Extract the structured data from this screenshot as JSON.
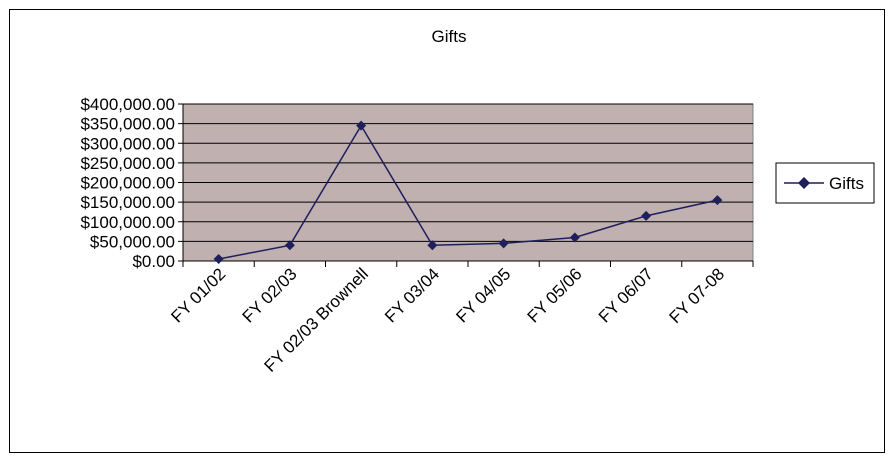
{
  "chart_data": {
    "type": "line",
    "title": "Gifts",
    "xlabel": "",
    "ylabel": "",
    "categories": [
      "FY 01/02",
      "FY 02/03",
      "FY 02/03 Brownell",
      "FY 03/04",
      "FY 04/05",
      "FY 05/06",
      "FY 06/07",
      "FY 07-08"
    ],
    "series": [
      {
        "name": "Gifts",
        "values": [
          5000,
          40000,
          345000,
          40000,
          45000,
          60000,
          115000,
          155000
        ],
        "color": "#1f1f5c"
      }
    ],
    "ylim": [
      0,
      400000
    ],
    "yticks": [
      0,
      50000,
      100000,
      150000,
      200000,
      250000,
      300000,
      350000,
      400000
    ],
    "ytick_labels": [
      "$0.00",
      "$50,000.00",
      "$100,000.00",
      "$150,000.00",
      "$200,000.00",
      "$250,000.00",
      "$300,000.00",
      "$350,000.00",
      "$400,000.00"
    ],
    "grid": true,
    "plot_background": "#c0b0b0",
    "legend": "right",
    "marker": "diamond"
  }
}
